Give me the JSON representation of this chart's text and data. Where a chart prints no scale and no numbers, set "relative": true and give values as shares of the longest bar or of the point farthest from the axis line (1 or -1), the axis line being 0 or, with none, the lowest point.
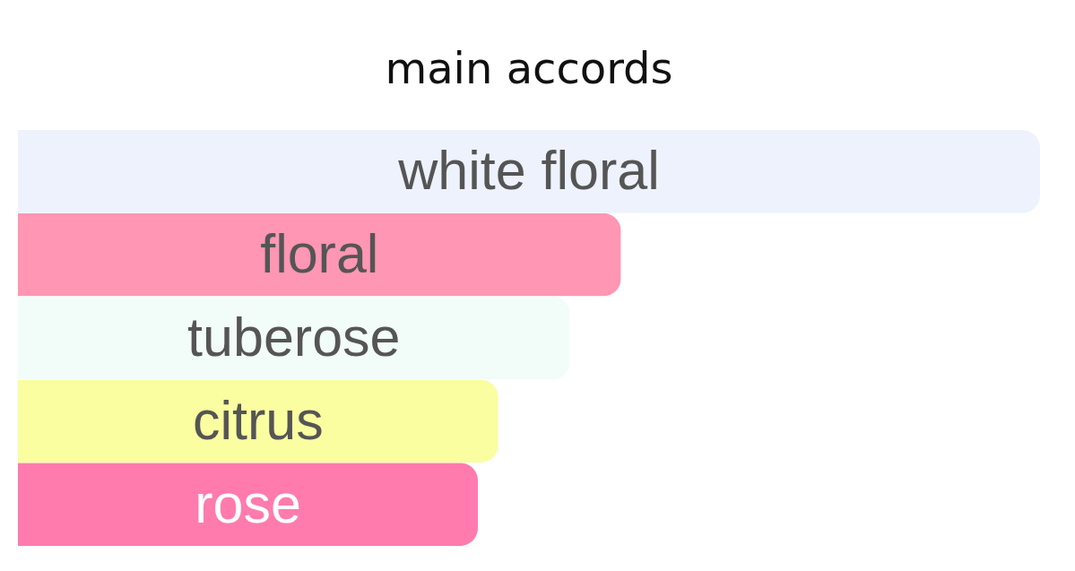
{
  "chart_data": {
    "type": "bar",
    "title": "main accords",
    "orientation": "horizontal",
    "relative": true,
    "categories": [
      "white floral",
      "floral",
      "tuberose",
      "citrus",
      "rose"
    ],
    "values": [
      1,
      0.59,
      0.54,
      0.47,
      0.45
    ],
    "colors": [
      "#edf2fd",
      "#ff96b4",
      "#f2fcf8",
      "#fafda0",
      "#ff7bae"
    ]
  }
}
